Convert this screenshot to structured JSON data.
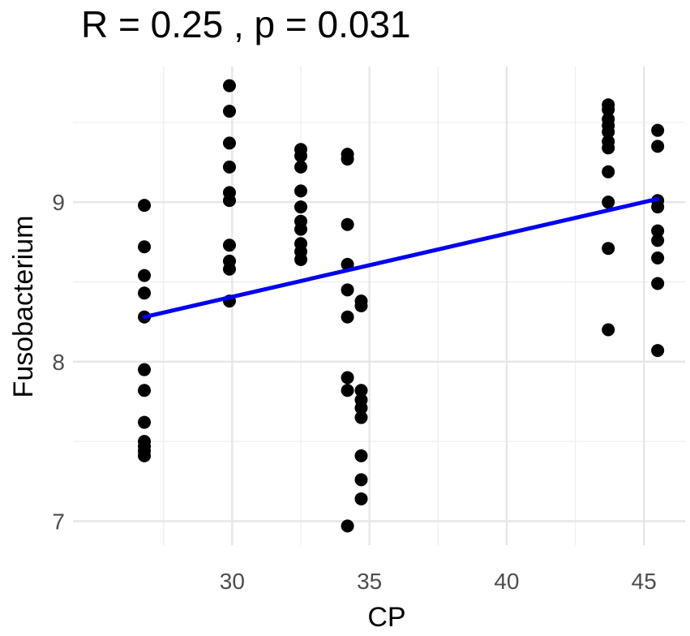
{
  "chart_data": {
    "type": "scatter",
    "title": "R = 0.25 , p = 0.031",
    "xlabel": "CP",
    "ylabel": "Fusobacterium",
    "xlim": [
      24.2,
      46.5
    ],
    "ylim": [
      6.85,
      9.85
    ],
    "x_ticks": [
      30,
      35,
      40,
      45
    ],
    "y_ticks": [
      7,
      8,
      9
    ],
    "grid": true,
    "legend": "none",
    "point_color": "#000000",
    "line_color": "#0000ee",
    "regression_line": {
      "x": [
        26.8,
        45.5
      ],
      "y": [
        8.28,
        9.02
      ]
    },
    "points": [
      {
        "x": 26.8,
        "y": 8.98
      },
      {
        "x": 26.8,
        "y": 8.72
      },
      {
        "x": 26.8,
        "y": 8.54
      },
      {
        "x": 26.8,
        "y": 8.43
      },
      {
        "x": 26.8,
        "y": 8.28
      },
      {
        "x": 26.8,
        "y": 7.95
      },
      {
        "x": 26.8,
        "y": 7.82
      },
      {
        "x": 26.8,
        "y": 7.62
      },
      {
        "x": 26.8,
        "y": 7.5
      },
      {
        "x": 26.8,
        "y": 7.47
      },
      {
        "x": 26.8,
        "y": 7.44
      },
      {
        "x": 26.8,
        "y": 7.41
      },
      {
        "x": 29.9,
        "y": 9.73
      },
      {
        "x": 29.9,
        "y": 9.57
      },
      {
        "x": 29.9,
        "y": 9.37
      },
      {
        "x": 29.9,
        "y": 9.22
      },
      {
        "x": 29.9,
        "y": 9.06
      },
      {
        "x": 29.9,
        "y": 9.01
      },
      {
        "x": 29.9,
        "y": 8.73
      },
      {
        "x": 29.9,
        "y": 8.63
      },
      {
        "x": 29.9,
        "y": 8.58
      },
      {
        "x": 29.9,
        "y": 8.38
      },
      {
        "x": 32.5,
        "y": 9.33
      },
      {
        "x": 32.5,
        "y": 9.29
      },
      {
        "x": 32.5,
        "y": 9.22
      },
      {
        "x": 32.5,
        "y": 9.07
      },
      {
        "x": 32.5,
        "y": 8.97
      },
      {
        "x": 32.5,
        "y": 8.88
      },
      {
        "x": 32.5,
        "y": 8.83
      },
      {
        "x": 32.5,
        "y": 8.74
      },
      {
        "x": 32.5,
        "y": 8.69
      },
      {
        "x": 32.5,
        "y": 8.64
      },
      {
        "x": 34.2,
        "y": 9.3
      },
      {
        "x": 34.2,
        "y": 9.27
      },
      {
        "x": 34.2,
        "y": 8.86
      },
      {
        "x": 34.2,
        "y": 8.61
      },
      {
        "x": 34.2,
        "y": 8.45
      },
      {
        "x": 34.2,
        "y": 8.28
      },
      {
        "x": 34.2,
        "y": 7.9
      },
      {
        "x": 34.2,
        "y": 7.82
      },
      {
        "x": 34.2,
        "y": 6.97
      },
      {
        "x": 34.7,
        "y": 8.38
      },
      {
        "x": 34.7,
        "y": 8.35
      },
      {
        "x": 34.7,
        "y": 7.82
      },
      {
        "x": 34.7,
        "y": 7.76
      },
      {
        "x": 34.7,
        "y": 7.71
      },
      {
        "x": 34.7,
        "y": 7.65
      },
      {
        "x": 34.7,
        "y": 7.41
      },
      {
        "x": 34.7,
        "y": 7.26
      },
      {
        "x": 34.7,
        "y": 7.14
      },
      {
        "x": 43.7,
        "y": 9.61
      },
      {
        "x": 43.7,
        "y": 9.58
      },
      {
        "x": 43.7,
        "y": 9.52
      },
      {
        "x": 43.7,
        "y": 9.48
      },
      {
        "x": 43.7,
        "y": 9.44
      },
      {
        "x": 43.7,
        "y": 9.38
      },
      {
        "x": 43.7,
        "y": 9.34
      },
      {
        "x": 43.7,
        "y": 9.19
      },
      {
        "x": 43.7,
        "y": 9.0
      },
      {
        "x": 43.7,
        "y": 8.71
      },
      {
        "x": 43.7,
        "y": 8.2
      },
      {
        "x": 45.5,
        "y": 9.45
      },
      {
        "x": 45.5,
        "y": 9.35
      },
      {
        "x": 45.5,
        "y": 9.01
      },
      {
        "x": 45.5,
        "y": 8.97
      },
      {
        "x": 45.5,
        "y": 8.82
      },
      {
        "x": 45.5,
        "y": 8.76
      },
      {
        "x": 45.5,
        "y": 8.65
      },
      {
        "x": 45.5,
        "y": 8.49
      },
      {
        "x": 45.5,
        "y": 8.07
      }
    ]
  }
}
